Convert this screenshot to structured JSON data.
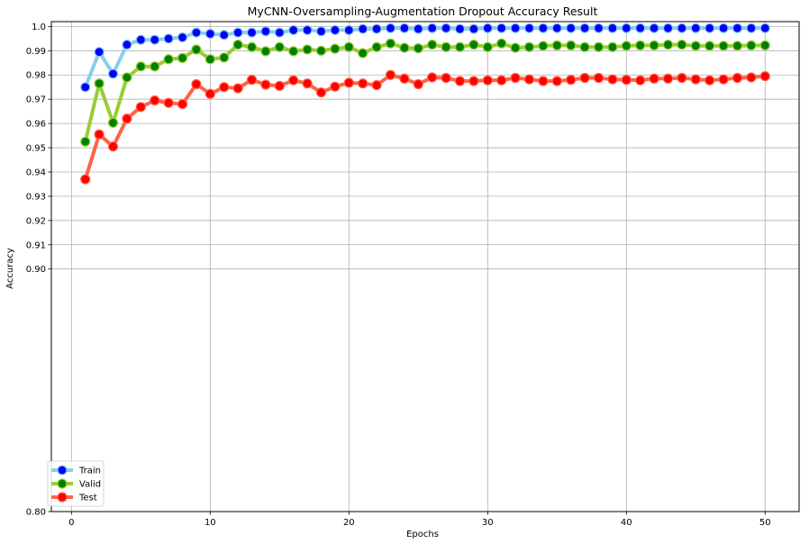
{
  "chart_data": {
    "type": "line",
    "title": "MyCNN-Oversampling-Augmentation Dropout Accuracy Result",
    "xlabel": "Epochs",
    "ylabel": "Accuracy",
    "xlim": [
      -1.45,
      52.45
    ],
    "ylim": [
      0.8,
      1.002
    ],
    "xticks": [
      0,
      10,
      20,
      30,
      40,
      50
    ],
    "xtick_labels": [
      "0",
      "10",
      "20",
      "30",
      "40",
      "50"
    ],
    "yticks": [
      0.8,
      0.9,
      0.91,
      0.92,
      0.93,
      0.94,
      0.95,
      0.96,
      0.97,
      0.98,
      0.99,
      1.0
    ],
    "ytick_labels": [
      "0.80",
      "0.90",
      "0.91",
      "0.92",
      "0.93",
      "0.94",
      "0.95",
      "0.96",
      "0.97",
      "0.98",
      "0.99",
      "1.0"
    ],
    "grid": true,
    "legend_position": "lower-left",
    "x": [
      1,
      2,
      3,
      4,
      5,
      6,
      7,
      8,
      9,
      10,
      11,
      12,
      13,
      14,
      15,
      16,
      17,
      18,
      19,
      20,
      21,
      22,
      23,
      24,
      25,
      26,
      27,
      28,
      29,
      30,
      31,
      32,
      33,
      34,
      35,
      36,
      37,
      38,
      39,
      40,
      41,
      42,
      43,
      44,
      45,
      46,
      47,
      48,
      49,
      50
    ],
    "series": [
      {
        "name": "Train",
        "line_color": "#87ceeb",
        "marker_color": "#0000ff",
        "values": [
          0.975,
          0.9895,
          0.9805,
          0.9925,
          0.9945,
          0.9945,
          0.995,
          0.9955,
          0.9975,
          0.997,
          0.9965,
          0.9975,
          0.9975,
          0.998,
          0.9975,
          0.9985,
          0.9985,
          0.998,
          0.9985,
          0.9985,
          0.999,
          0.999,
          0.9993,
          0.9993,
          0.999,
          0.9993,
          0.9993,
          0.999,
          0.999,
          0.9993,
          0.9993,
          0.9993,
          0.9993,
          0.9993,
          0.9993,
          0.9993,
          0.9993,
          0.9993,
          0.9993,
          0.9993,
          0.9993,
          0.9993,
          0.9993,
          0.9993,
          0.9993,
          0.9993,
          0.9993,
          0.9993,
          0.9993,
          0.9993
        ]
      },
      {
        "name": "Valid",
        "line_color": "#9acd32",
        "marker_color": "#008000",
        "values": [
          0.9525,
          0.9765,
          0.9603,
          0.979,
          0.9835,
          0.9835,
          0.9865,
          0.987,
          0.9905,
          0.9865,
          0.9872,
          0.9925,
          0.9915,
          0.9898,
          0.9915,
          0.9898,
          0.9905,
          0.99,
          0.9908,
          0.9915,
          0.989,
          0.9915,
          0.993,
          0.9912,
          0.991,
          0.9925,
          0.9915,
          0.9915,
          0.9925,
          0.9915,
          0.993,
          0.9912,
          0.9915,
          0.992,
          0.9922,
          0.9922,
          0.9915,
          0.9915,
          0.9915,
          0.992,
          0.9922,
          0.9922,
          0.9925,
          0.9925,
          0.992,
          0.992,
          0.992,
          0.992,
          0.9922,
          0.9922
        ]
      },
      {
        "name": "Test",
        "line_color": "#ff6347",
        "marker_color": "#ff0000",
        "values": [
          0.937,
          0.9555,
          0.9505,
          0.962,
          0.9668,
          0.9695,
          0.9685,
          0.968,
          0.9762,
          0.9722,
          0.975,
          0.9745,
          0.978,
          0.976,
          0.9755,
          0.9778,
          0.9765,
          0.9728,
          0.9752,
          0.9768,
          0.9765,
          0.9758,
          0.98,
          0.9785,
          0.9762,
          0.979,
          0.9788,
          0.9775,
          0.9775,
          0.9778,
          0.9778,
          0.9788,
          0.9782,
          0.9775,
          0.9775,
          0.978,
          0.9788,
          0.9788,
          0.9782,
          0.978,
          0.9778,
          0.9785,
          0.9785,
          0.9788,
          0.9782,
          0.9778,
          0.9782,
          0.9788,
          0.979,
          0.9795
        ]
      }
    ]
  }
}
